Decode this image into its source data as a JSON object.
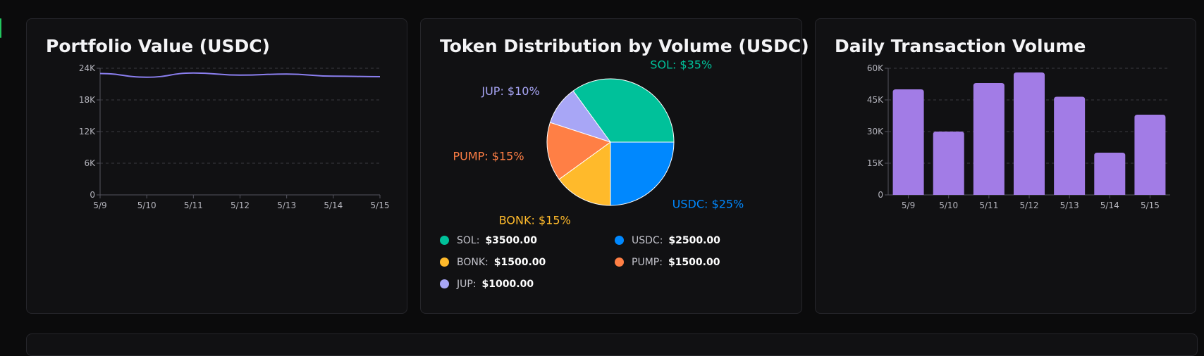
{
  "cards": {
    "portfolio": {
      "title": "Portfolio Value (USDC)",
      "chart_data": {
        "type": "line",
        "title": "Portfolio Value (USDC)",
        "categories": [
          "5/9",
          "5/10",
          "5/11",
          "5/12",
          "5/13",
          "5/14",
          "5/15"
        ],
        "series": [
          {
            "values": [
              23000,
              22300,
              23100,
              22700,
              22900,
              22500,
              22400
            ]
          }
        ],
        "ylim": [
          0,
          24000
        ],
        "yticks": [
          "0",
          "6K",
          "12K",
          "18K",
          "24K"
        ],
        "grid": true,
        "color": "#8b7ff0"
      }
    },
    "tokens": {
      "title": "Token Distribution by Volume (USDC)",
      "chart_data": {
        "type": "pie",
        "title": "Token Distribution by Volume (USDC)",
        "slices": [
          {
            "name": "SOL",
            "value": 35,
            "label": "SOL: $35%",
            "color": "#00c19a"
          },
          {
            "name": "JUP",
            "value": 10,
            "label": "JUP: $10%",
            "color": "#a8a6f6"
          },
          {
            "name": "PUMP",
            "value": 15,
            "label": "PUMP: $15%",
            "color": "#ff7f45"
          },
          {
            "name": "BONK",
            "value": 15,
            "label": "BONK: $15%",
            "color": "#ffba2b"
          },
          {
            "name": "USDC",
            "value": 25,
            "label": "USDC: $25%",
            "color": "#0088fe"
          }
        ]
      },
      "legend": [
        {
          "name": "SOL:",
          "value": "$3500.00",
          "color": "#00c19a"
        },
        {
          "name": "USDC:",
          "value": "$2500.00",
          "color": "#0088fe"
        },
        {
          "name": "BONK:",
          "value": "$1500.00",
          "color": "#ffba2b"
        },
        {
          "name": "PUMP:",
          "value": "$1500.00",
          "color": "#ff7f45"
        },
        {
          "name": "JUP:",
          "value": "$1000.00",
          "color": "#a8a6f6"
        }
      ]
    },
    "volume": {
      "title": "Daily Transaction Volume",
      "chart_data": {
        "type": "bar",
        "title": "Daily Transaction Volume",
        "categories": [
          "5/9",
          "5/10",
          "5/11",
          "5/12",
          "5/13",
          "5/14",
          "5/15"
        ],
        "values": [
          50000,
          30000,
          53000,
          58000,
          46500,
          20000,
          38000
        ],
        "ylim": [
          0,
          60000
        ],
        "yticks": [
          "0",
          "15K",
          "30K",
          "45K",
          "60K"
        ],
        "grid": true,
        "color": "#a27ce6"
      }
    }
  }
}
